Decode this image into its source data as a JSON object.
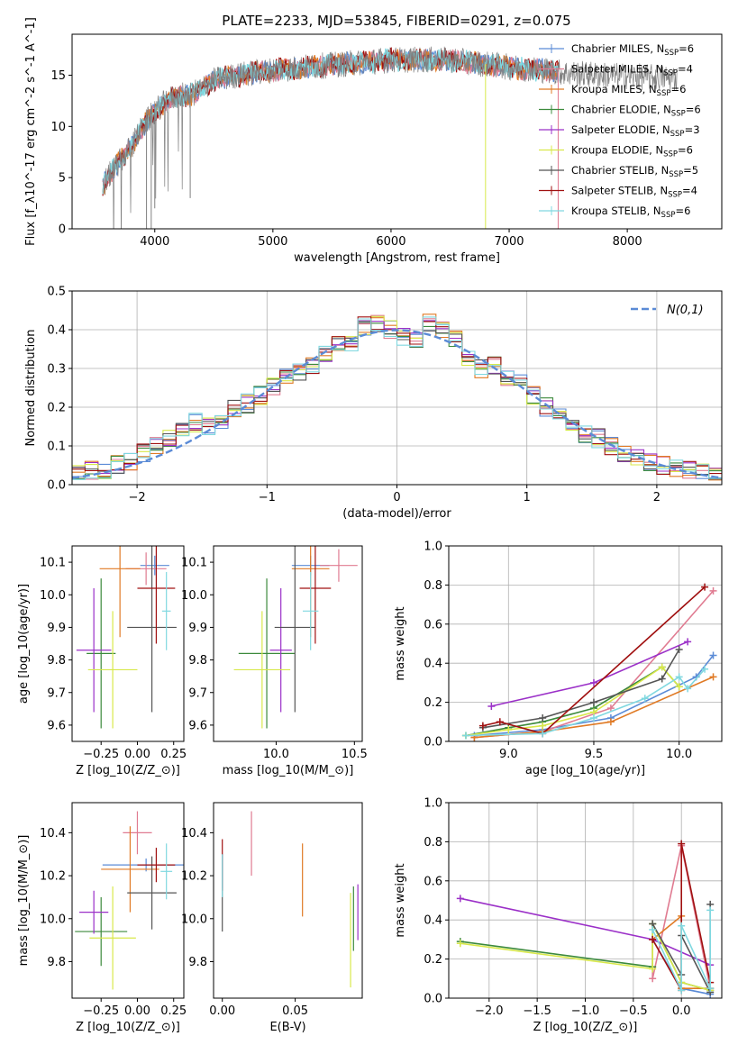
{
  "figure": {
    "title": "PLATE=2233, MJD=53845, FIBERID=0291, z=0.075"
  },
  "colors": {
    "Chabrier MILES": "#5b8bd6",
    "Salpeter MILES": "#e07b91",
    "Kroupa MILES": "#e07a25",
    "Chabrier ELODIE": "#3c8a3c",
    "Salpeter ELODIE": "#9b30c8",
    "Kroupa ELODIE": "#d8e84a",
    "Chabrier STELIB": "#555555",
    "Salpeter STELIB": "#a01010",
    "Kroupa STELIB": "#80d8e0",
    "data": "#808080",
    "normal": "#5b8bd6"
  },
  "chart_data": [
    {
      "id": "spectrum",
      "type": "line",
      "xlabel": "wavelength [Angstrom, rest frame]",
      "ylabel": "Flux [f$_\\lambda$10$^{-17}$ erg cm$^{-2}$ s$^{-1}$ A$^{-1}$]",
      "xlim": [
        3300,
        8800
      ],
      "ylim": [
        0,
        19
      ],
      "xticks": [
        4000,
        5000,
        6000,
        7000,
        8000
      ],
      "yticks": [
        0,
        5,
        10,
        15
      ],
      "legend_position": "upper right",
      "grid": false,
      "series_envelope": {
        "x": [
          3550,
          3600,
          3700,
          3800,
          3900,
          4000,
          4100,
          4200,
          4300,
          4500,
          4700,
          5000,
          5500,
          6000,
          6500,
          7000,
          7300,
          7500,
          7800,
          8200,
          8800
        ],
        "y": [
          4,
          5,
          6.5,
          8,
          10,
          11.5,
          12.5,
          13,
          13,
          14.5,
          15,
          15.5,
          16,
          16.5,
          16.5,
          15.8,
          15.5,
          15.2,
          15,
          14.8,
          14.6
        ]
      },
      "series": [
        {
          "name": "Chabrier MILES, N$_{SSP}$=6"
        },
        {
          "name": "Salpeter MILES, N$_{SSP}$=4"
        },
        {
          "name": "Kroupa MILES, N$_{SSP}$=6"
        },
        {
          "name": "Chabrier ELODIE, N$_{SSP}$=6"
        },
        {
          "name": "Salpeter ELODIE, N$_{SSP}$=3"
        },
        {
          "name": "Kroupa ELODIE, N$_{SSP}$=6"
        },
        {
          "name": "Chabrier STELIB, N$_{SSP}$=5"
        },
        {
          "name": "Salpeter STELIB, N$_{SSP}$=4"
        },
        {
          "name": "Kroupa STELIB, N$_{SSP}$=6"
        }
      ]
    },
    {
      "id": "residuals",
      "type": "line",
      "xlabel": "(data-model)/error",
      "ylabel": "Normed distribution",
      "xlim": [
        -2.5,
        2.5
      ],
      "ylim": [
        0,
        0.5
      ],
      "xticks": [
        -2,
        -1,
        0,
        1,
        2
      ],
      "yticks": [
        0.0,
        0.1,
        0.2,
        0.3,
        0.4,
        0.5
      ],
      "grid": true,
      "legend": "$\\mathcal{N}(0,1)$",
      "bin_width": 0.1,
      "histogram_centers": [
        -2.45,
        -2.35,
        -2.25,
        -2.15,
        -2.05,
        -1.95,
        -1.85,
        -1.75,
        -1.65,
        -1.55,
        -1.45,
        -1.35,
        -1.25,
        -1.15,
        -1.05,
        -0.95,
        -0.85,
        -0.75,
        -0.65,
        -0.55,
        -0.45,
        -0.35,
        -0.25,
        -0.15,
        -0.05,
        0.05,
        0.15,
        0.25,
        0.35,
        0.45,
        0.55,
        0.65,
        0.75,
        0.85,
        0.95,
        1.05,
        1.15,
        1.25,
        1.35,
        1.45,
        1.55,
        1.65,
        1.75,
        1.85,
        1.95,
        2.05,
        2.15,
        2.25,
        2.35,
        2.45
      ],
      "histogram_values": [
        0.03,
        0.035,
        0.04,
        0.05,
        0.06,
        0.08,
        0.1,
        0.12,
        0.15,
        0.16,
        0.15,
        0.17,
        0.2,
        0.21,
        0.23,
        0.25,
        0.28,
        0.29,
        0.31,
        0.34,
        0.36,
        0.37,
        0.41,
        0.42,
        0.4,
        0.38,
        0.37,
        0.42,
        0.4,
        0.38,
        0.33,
        0.3,
        0.31,
        0.28,
        0.26,
        0.23,
        0.2,
        0.18,
        0.15,
        0.13,
        0.12,
        0.1,
        0.08,
        0.07,
        0.06,
        0.05,
        0.045,
        0.035,
        0.03,
        0.028
      ]
    },
    {
      "id": "age_vs_Z",
      "type": "scatter",
      "xlabel": "Z [log$_{10}$(Z/Z$_\\odot$)]",
      "ylabel": "age  [log$_{10}$(age/yr)]",
      "xlim": [
        -0.45,
        0.32
      ],
      "ylim": [
        9.55,
        10.15
      ],
      "xticks": [
        -0.25,
        0.0,
        0.25
      ],
      "yticks": [
        9.6,
        9.7,
        9.8,
        9.9,
        10.0,
        10.1
      ],
      "points": [
        {
          "series": "Chabrier MILES",
          "x": 0.12,
          "xerr": 0.1,
          "y": 10.09,
          "yerr": 0.03
        },
        {
          "series": "Salpeter MILES",
          "x": 0.06,
          "xerr": 0.14,
          "y": 10.08,
          "yerr": 0.05
        },
        {
          "series": "Kroupa MILES",
          "x": -0.12,
          "xerr": 0.14,
          "y": 10.08,
          "yerr": 0.21
        },
        {
          "series": "Chabrier ELODIE",
          "x": -0.25,
          "xerr": 0.1,
          "y": 9.82,
          "yerr": 0.23
        },
        {
          "series": "Salpeter ELODIE",
          "x": -0.3,
          "xerr": 0.12,
          "y": 9.83,
          "yerr": 0.19
        },
        {
          "series": "Kroupa ELODIE",
          "x": -0.17,
          "xerr": 0.17,
          "y": 9.77,
          "yerr": 0.18
        },
        {
          "series": "Chabrier STELIB",
          "x": 0.1,
          "xerr": 0.17,
          "y": 9.9,
          "yerr": 0.26
        },
        {
          "series": "Salpeter STELIB",
          "x": 0.13,
          "xerr": 0.13,
          "y": 10.02,
          "yerr": 0.17
        },
        {
          "series": "Kroupa STELIB",
          "x": 0.2,
          "xerr": 0.03,
          "y": 9.95,
          "yerr": 0.12
        }
      ]
    },
    {
      "id": "age_vs_mass",
      "type": "scatter",
      "xlabel": "mass [log$_{10}$(M/M$_\\odot$)]",
      "ylabel": "",
      "xlim": [
        9.6,
        10.55
      ],
      "ylim": [
        9.55,
        10.15
      ],
      "xticks": [
        10.0,
        10.5
      ],
      "yticks": [
        9.6,
        9.7,
        9.8,
        9.9,
        10.0,
        10.1
      ],
      "points": [
        {
          "series": "Chabrier MILES",
          "x": 10.22,
          "xerr": 0.12,
          "y": 10.09,
          "yerr": 0.03
        },
        {
          "series": "Salpeter MILES",
          "x": 10.4,
          "xerr": 0.12,
          "y": 10.09,
          "yerr": 0.05
        },
        {
          "series": "Kroupa MILES",
          "x": 10.22,
          "xerr": 0.12,
          "y": 10.08,
          "yerr": 0.21
        },
        {
          "series": "Chabrier ELODIE",
          "x": 9.94,
          "xerr": 0.18,
          "y": 9.82,
          "yerr": 0.23
        },
        {
          "series": "Salpeter ELODIE",
          "x": 10.03,
          "xerr": 0.07,
          "y": 9.83,
          "yerr": 0.19
        },
        {
          "series": "Kroupa ELODIE",
          "x": 9.91,
          "xerr": 0.18,
          "y": 9.77,
          "yerr": 0.18
        },
        {
          "series": "Chabrier STELIB",
          "x": 10.12,
          "xerr": 0.13,
          "y": 9.9,
          "yerr": 0.26
        },
        {
          "series": "Salpeter STELIB",
          "x": 10.25,
          "xerr": 0.1,
          "y": 10.02,
          "yerr": 0.17
        },
        {
          "series": "Kroupa STELIB",
          "x": 10.22,
          "xerr": 0.05,
          "y": 9.95,
          "yerr": 0.12
        }
      ]
    },
    {
      "id": "weight_vs_age",
      "type": "line",
      "xlabel": "age  [log$_{10}$(age/yr)]",
      "ylabel": "mass weight",
      "xlim": [
        8.65,
        10.25
      ],
      "ylim": [
        0,
        1
      ],
      "xticks": [
        9.0,
        9.5,
        10.0
      ],
      "yticks": [
        0.0,
        0.2,
        0.4,
        0.6,
        0.8,
        1.0
      ],
      "grid": true,
      "series": [
        {
          "color_of": "Chabrier MILES",
          "x": [
            8.8,
            9.2,
            9.6,
            10.1,
            10.2
          ],
          "y": [
            0.03,
            0.06,
            0.12,
            0.33,
            0.44
          ]
        },
        {
          "color_of": "Salpeter MILES",
          "x": [
            8.8,
            9.2,
            9.6,
            10.2
          ],
          "y": [
            0.02,
            0.05,
            0.17,
            0.77
          ]
        },
        {
          "color_of": "Kroupa MILES",
          "x": [
            8.8,
            9.2,
            9.6,
            10.2
          ],
          "y": [
            0.02,
            0.05,
            0.1,
            0.33
          ]
        },
        {
          "color_of": "Chabrier ELODIE",
          "x": [
            8.75,
            9.0,
            9.2,
            9.5,
            9.9,
            10.0
          ],
          "y": [
            0.03,
            0.07,
            0.1,
            0.17,
            0.38,
            0.28
          ]
        },
        {
          "color_of": "Salpeter ELODIE",
          "x": [
            8.9,
            9.5,
            10.05
          ],
          "y": [
            0.18,
            0.3,
            0.51
          ]
        },
        {
          "color_of": "Kroupa ELODIE",
          "x": [
            8.75,
            9.0,
            9.2,
            9.5,
            9.9,
            10.0
          ],
          "y": [
            0.03,
            0.06,
            0.08,
            0.15,
            0.38,
            0.28
          ]
        },
        {
          "color_of": "Chabrier STELIB",
          "x": [
            8.85,
            9.2,
            9.5,
            9.9,
            10.0
          ],
          "y": [
            0.07,
            0.12,
            0.2,
            0.32,
            0.47
          ]
        },
        {
          "color_of": "Salpeter STELIB",
          "x": [
            8.85,
            8.95,
            9.2,
            10.15
          ],
          "y": [
            0.08,
            0.1,
            0.04,
            0.79
          ]
        },
        {
          "color_of": "Kroupa STELIB",
          "x": [
            8.75,
            9.2,
            9.5,
            9.8,
            10.0,
            10.05,
            10.15
          ],
          "y": [
            0.03,
            0.04,
            0.12,
            0.22,
            0.33,
            0.27,
            0.37
          ]
        }
      ]
    },
    {
      "id": "mass_vs_Z",
      "type": "scatter",
      "xlabel": "Z [log$_{10}$(Z/Z$_\\odot$)]",
      "ylabel": "mass [log$_{10}$(M/M$_\\odot$)]",
      "xlim": [
        -0.45,
        0.32
      ],
      "ylim": [
        9.63,
        10.54
      ],
      "xticks": [
        -0.25,
        0.0,
        0.25
      ],
      "yticks": [
        9.8,
        10.0,
        10.2,
        10.4
      ],
      "points": [
        {
          "series": "Chabrier MILES",
          "x": 0.06,
          "xerr": 0.3,
          "y": 10.25,
          "yerr": 0.03
        },
        {
          "series": "Salpeter MILES",
          "x": 0.0,
          "xerr": 0.1,
          "y": 10.4,
          "yerr": 0.1
        },
        {
          "series": "Kroupa MILES",
          "x": -0.05,
          "xerr": 0.2,
          "y": 10.23,
          "yerr": 0.2
        },
        {
          "series": "Chabrier ELODIE",
          "x": -0.25,
          "xerr": 0.18,
          "y": 9.94,
          "yerr": 0.16
        },
        {
          "series": "Salpeter ELODIE",
          "x": -0.3,
          "xerr": 0.1,
          "y": 10.03,
          "yerr": 0.1
        },
        {
          "series": "Kroupa ELODIE",
          "x": -0.17,
          "xerr": 0.16,
          "y": 9.91,
          "yerr": 0.24
        },
        {
          "series": "Chabrier STELIB",
          "x": 0.1,
          "xerr": 0.17,
          "y": 10.12,
          "yerr": 0.17
        },
        {
          "series": "Salpeter STELIB",
          "x": 0.13,
          "xerr": 0.13,
          "y": 10.25,
          "yerr": 0.08
        },
        {
          "series": "Kroupa STELIB",
          "x": 0.2,
          "xerr": 0.04,
          "y": 10.22,
          "yerr": 0.13
        }
      ]
    },
    {
      "id": "mass_vs_EBV",
      "type": "scatter",
      "xlabel": "E(B-V)",
      "ylabel": "",
      "xlim": [
        -0.006,
        0.096
      ],
      "ylim": [
        9.63,
        10.54
      ],
      "xticks": [
        0.0,
        0.05
      ],
      "yticks": [
        9.8,
        10.0,
        10.2,
        10.4
      ],
      "points": [
        {
          "series": "Chabrier MILES",
          "x": 0.0,
          "y": 10.22,
          "yerr": 0.08
        },
        {
          "series": "Salpeter MILES",
          "x": 0.02,
          "y": 10.35,
          "yerr": 0.15
        },
        {
          "series": "Kroupa MILES",
          "x": 0.055,
          "y": 10.18,
          "yerr": 0.17
        },
        {
          "series": "Chabrier ELODIE",
          "x": 0.09,
          "y": 10.0,
          "yerr": 0.15
        },
        {
          "series": "Salpeter ELODIE",
          "x": 0.093,
          "y": 10.03,
          "yerr": 0.13
        },
        {
          "series": "Kroupa ELODIE",
          "x": 0.088,
          "y": 9.9,
          "yerr": 0.22
        },
        {
          "series": "Chabrier STELIB",
          "x": 0.0,
          "y": 10.12,
          "yerr": 0.18
        },
        {
          "series": "Salpeter STELIB",
          "x": 0.0,
          "y": 10.25,
          "yerr": 0.12
        },
        {
          "series": "Kroupa STELIB",
          "x": 0.0,
          "y": 10.2,
          "yerr": 0.1
        }
      ]
    },
    {
      "id": "weight_vs_Z",
      "type": "line",
      "xlabel": "Z [log$_{10}$(Z/Z$_\\odot$)]",
      "ylabel": "mass weight",
      "xlim": [
        -2.42,
        0.42
      ],
      "ylim": [
        0,
        1
      ],
      "xticks": [
        -2.0,
        -1.5,
        -1.0,
        -0.5,
        0.0
      ],
      "yticks": [
        0.0,
        0.2,
        0.4,
        0.6,
        0.8,
        1.0
      ],
      "grid": true,
      "series": [
        {
          "color_of": "Chabrier MILES",
          "x": [
            -0.3,
            0.0,
            0.3
          ],
          "y": [
            0.3,
            0.05,
            0.02
          ]
        },
        {
          "color_of": "Salpeter MILES",
          "x": [
            -0.3,
            -0.3,
            0.0,
            0.3
          ],
          "y": [
            0.3,
            0.1,
            0.78,
            0.05
          ]
        },
        {
          "color_of": "Kroupa MILES",
          "x": [
            -0.3,
            0.0,
            0.0,
            0.3
          ],
          "y": [
            0.3,
            0.42,
            0.05,
            0.05
          ]
        },
        {
          "color_of": "Chabrier ELODIE",
          "x": [
            -2.3,
            -0.3,
            -0.3,
            0.0,
            0.3
          ],
          "y": [
            0.29,
            0.16,
            0.38,
            0.08,
            0.04
          ]
        },
        {
          "color_of": "Salpeter ELODIE",
          "x": [
            -2.3,
            -0.3,
            0.3
          ],
          "y": [
            0.51,
            0.3,
            0.17
          ]
        },
        {
          "color_of": "Kroupa ELODIE",
          "x": [
            -2.3,
            -0.3,
            -0.3,
            0.0,
            0.3
          ],
          "y": [
            0.28,
            0.15,
            0.38,
            0.08,
            0.04
          ]
        },
        {
          "color_of": "Chabrier STELIB",
          "x": [
            -0.3,
            0.0,
            0.0,
            0.3,
            0.3
          ],
          "y": [
            0.38,
            0.12,
            0.32,
            0.03,
            0.48
          ]
        },
        {
          "color_of": "Salpeter STELIB",
          "x": [
            -0.3,
            0.0,
            0.0,
            0.3
          ],
          "y": [
            0.3,
            0.04,
            0.79,
            0.08
          ]
        },
        {
          "color_of": "Kroupa STELIB",
          "x": [
            -0.3,
            0.0,
            0.0,
            0.3,
            0.3
          ],
          "y": [
            0.35,
            0.04,
            0.37,
            0.05,
            0.45
          ]
        }
      ]
    }
  ]
}
